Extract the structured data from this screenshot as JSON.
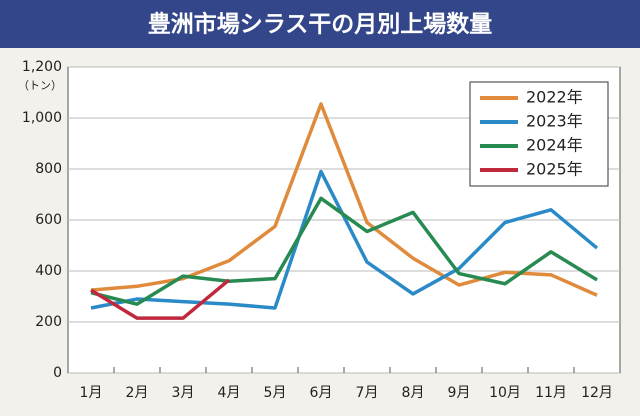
{
  "chart_data": {
    "type": "line",
    "title": "豊洲市場シラス干の月別上場数量",
    "y_unit": "（トン）",
    "categories": [
      "1月",
      "2月",
      "3月",
      "4月",
      "5月",
      "6月",
      "7月",
      "8月",
      "9月",
      "10月",
      "11月",
      "12月"
    ],
    "series": [
      {
        "name": "2022年",
        "color": "#e08a3c",
        "values": [
          325,
          340,
          370,
          440,
          575,
          1055,
          590,
          450,
          345,
          395,
          385,
          305
        ]
      },
      {
        "name": "2023年",
        "color": "#2a8ac8",
        "values": [
          255,
          290,
          280,
          270,
          255,
          790,
          435,
          310,
          410,
          590,
          640,
          490
        ]
      },
      {
        "name": "2024年",
        "color": "#278a50",
        "values": [
          315,
          270,
          380,
          360,
          370,
          685,
          555,
          630,
          390,
          350,
          475,
          365
        ]
      },
      {
        "name": "2025年",
        "color": "#c0283c",
        "values": [
          325,
          215,
          215,
          365,
          null,
          null,
          null,
          null,
          null,
          null,
          null,
          null
        ]
      }
    ],
    "ylim": [
      0,
      1200
    ],
    "yticks": [
      0,
      200,
      400,
      600,
      800,
      {
        "value": 1000,
        "label": "1,000"
      },
      {
        "value": 1200,
        "label": "1,200"
      }
    ],
    "grid": true,
    "legend": "top-right"
  }
}
